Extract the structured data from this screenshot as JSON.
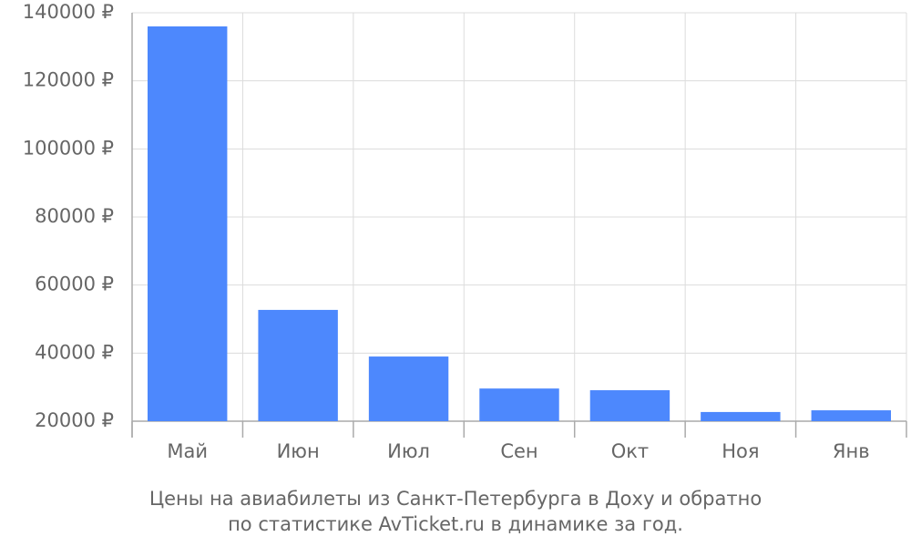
{
  "chart_data": {
    "type": "bar",
    "title": "Цены на авиабилеты из Санкт-Петербурга в Доху и обратно",
    "subtitle": "по статистике AvTicket.ru в динамике за год.",
    "categories": [
      "Май",
      "Июн",
      "Июл",
      "Сен",
      "Окт",
      "Ноя",
      "Янв"
    ],
    "values": [
      136000,
      52700,
      39000,
      29600,
      29100,
      22700,
      23200
    ],
    "color": "#4d88fd",
    "ylim": [
      20000,
      140000
    ],
    "yticks": [
      {
        "value": 20000,
        "label": "20000 ₽"
      },
      {
        "value": 40000,
        "label": "40000 ₽"
      },
      {
        "value": 60000,
        "label": "60000 ₽"
      },
      {
        "value": 80000,
        "label": "80000 ₽"
      },
      {
        "value": 100000,
        "label": "100000 ₽"
      },
      {
        "value": 120000,
        "label": "120000 ₽"
      },
      {
        "value": 140000,
        "label": "140000 ₽"
      }
    ],
    "grid": true
  }
}
